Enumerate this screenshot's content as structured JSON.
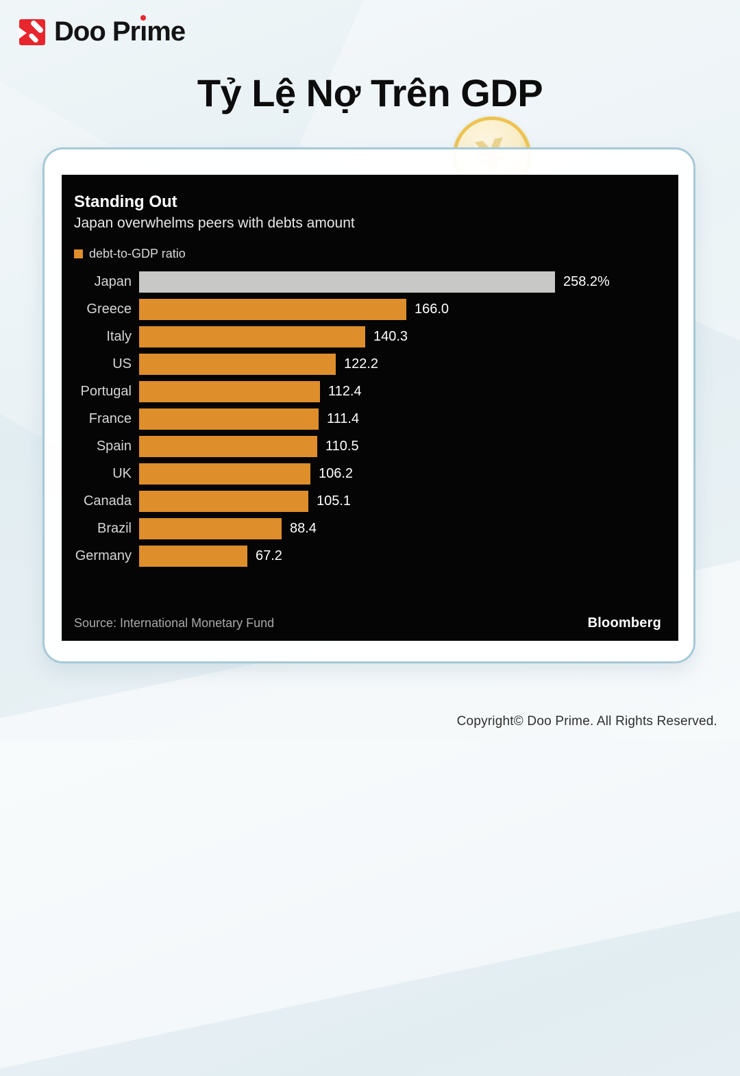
{
  "brand": {
    "name_pre": "Doo Pr",
    "name_i_dotless": "ı",
    "name_post": "me",
    "red": "#e8262d"
  },
  "header": {
    "title": "Tỷ Lệ Nợ Trên GDP"
  },
  "icons": {
    "coin_symbol": "¥"
  },
  "chart": {
    "title": "Standing Out",
    "subtitle": "Japan overwhelms peers with debts amount",
    "legend_label": "debt-to-GDP ratio",
    "source": "Source: International Monetary Fund",
    "attribution": "Bloomberg",
    "colors": {
      "background": "#050505",
      "orange_bar": "#de8e2b",
      "gray_bar": "#c8c8c6",
      "card_border": "#a6c9d6"
    }
  },
  "chart_data": {
    "type": "bar",
    "orientation": "horizontal",
    "title": "Standing Out",
    "subtitle": "Japan overwhelms peers with debts amount",
    "legend": [
      "debt-to-GDP ratio"
    ],
    "legend_position": "top-left",
    "grid": false,
    "xlim": [
      0,
      305
    ],
    "categories": [
      "Japan",
      "Greece",
      "Italy",
      "US",
      "Portugal",
      "France",
      "Spain",
      "UK",
      "Canada",
      "Brazil",
      "Germany"
    ],
    "values": [
      258.2,
      166.0,
      140.3,
      122.2,
      112.4,
      111.4,
      110.5,
      106.2,
      105.1,
      88.4,
      67.2
    ],
    "value_labels": [
      "258.2%",
      "166.0",
      "140.3",
      "122.2",
      "112.4",
      "111.4",
      "110.5",
      "106.2",
      "105.1",
      "88.4",
      "67.2"
    ],
    "bar_colors": [
      "#c8c8c6",
      "#de8e2b",
      "#de8e2b",
      "#de8e2b",
      "#de8e2b",
      "#de8e2b",
      "#de8e2b",
      "#de8e2b",
      "#de8e2b",
      "#de8e2b",
      "#de8e2b"
    ],
    "xlabel": "",
    "ylabel": "",
    "source": "Source: International Monetary Fund",
    "attribution": "Bloomberg"
  },
  "footer": {
    "copyright": "Copyright© Doo Prime. All Rights Reserved."
  }
}
